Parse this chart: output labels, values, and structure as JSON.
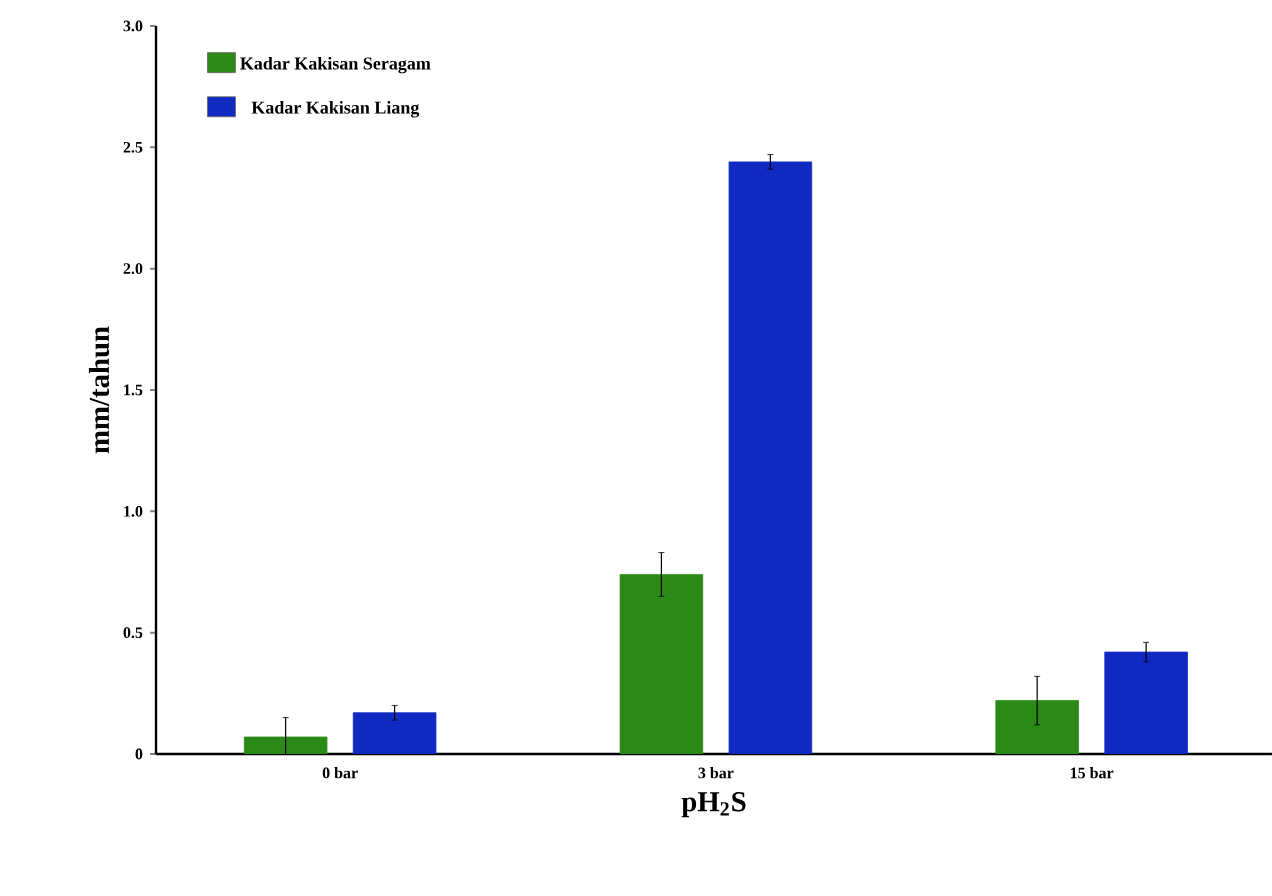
{
  "chart_data": {
    "type": "bar",
    "xlabel": "pH$_{2}$S",
    "ylabel": "mm/tahun",
    "categories": [
      "0 bar",
      "3 bar",
      "15 bar"
    ],
    "series": [
      {
        "name": "Kadar Kakisan Seragam",
        "color": "#2b8a17",
        "values": [
          0.07,
          0.74,
          0.22
        ],
        "errors": [
          0.08,
          0.09,
          0.1
        ]
      },
      {
        "name": "Kadar Kakisan Liang",
        "color": "#1029c0",
        "values": [
          0.17,
          2.44,
          0.42
        ],
        "errors": [
          0.03,
          0.03,
          0.04
        ]
      }
    ],
    "ylim": [
      0,
      3
    ],
    "yticks": [
      0,
      0.5,
      {
        "value": 1,
        "label": "1.0"
      },
      1.5,
      {
        "value": 2,
        "label": "2.0"
      },
      2.5,
      {
        "value": 3,
        "label": "3.0"
      }
    ],
    "grid": false,
    "legend": "top left"
  }
}
